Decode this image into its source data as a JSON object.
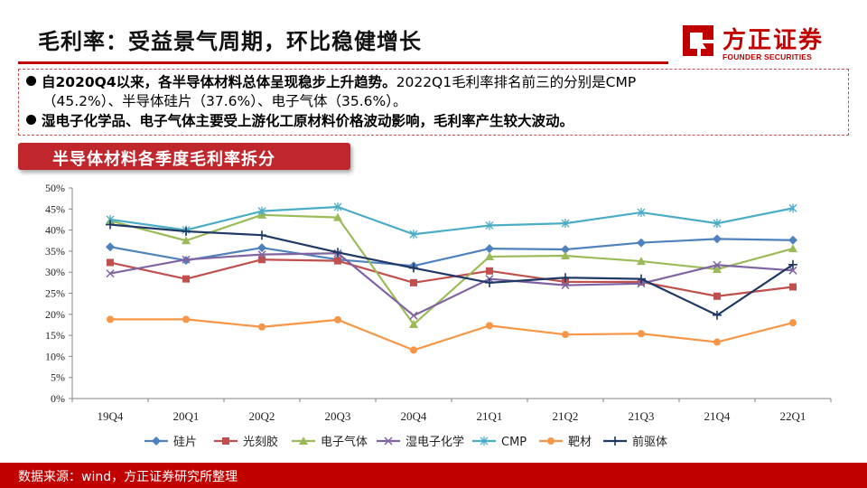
{
  "slide": {
    "title": "毛利率：受益景气周期，环比稳健增长"
  },
  "logo": {
    "name_cn": "方正证券",
    "name_en": "FOUNDER SECURITIES",
    "brand_color": "#c00000"
  },
  "summary": {
    "bullet1_bold": "自2020Q4以来，各半导体材料总体呈现稳步上升趋势。",
    "bullet1_rest": "2022Q1毛利率排名前三的分别是CMP",
    "bullet1_line2": "（45.2%）、半导体硅片（37.6%）、电子气体（35.6%）。",
    "bullet2": "湿电子化学品、电子气体主要受上游化工原材料价格波动影响，毛利率产生较大波动。"
  },
  "banner": {
    "label": "半导体材料各季度毛利率拆分"
  },
  "chart_data": {
    "type": "line",
    "title": "半导体材料各季度毛利率拆分",
    "categories": [
      "19Q4",
      "20Q1",
      "20Q2",
      "20Q3",
      "20Q4",
      "21Q1",
      "21Q2",
      "21Q3",
      "21Q4",
      "22Q1"
    ],
    "ylim": [
      0,
      50
    ],
    "y_ticks": [
      "0%",
      "5%",
      "10%",
      "15%",
      "20%",
      "25%",
      "30%",
      "35%",
      "40%",
      "45%",
      "50%"
    ],
    "y_unit": "%",
    "grid": false,
    "legend_position": "bottom",
    "series": [
      {
        "name": "硅片",
        "color": "#4f81bd",
        "marker": "diamond",
        "values": [
          36.0,
          32.8,
          35.8,
          33.0,
          31.5,
          35.6,
          35.4,
          37.0,
          37.9,
          37.6
        ]
      },
      {
        "name": "光刻胶",
        "color": "#c0504d",
        "marker": "square",
        "values": [
          32.3,
          28.4,
          33.0,
          32.7,
          27.5,
          30.3,
          27.7,
          27.7,
          24.3,
          26.5
        ]
      },
      {
        "name": "电子气体",
        "color": "#9bbb59",
        "marker": "triangle",
        "values": [
          42.2,
          37.5,
          43.6,
          43.0,
          17.6,
          33.7,
          33.9,
          32.6,
          30.7,
          35.6
        ]
      },
      {
        "name": "湿电子化学",
        "color": "#8064a2",
        "marker": "x",
        "values": [
          29.7,
          33.0,
          34.2,
          34.5,
          19.7,
          28.4,
          26.9,
          27.3,
          31.7,
          30.4
        ]
      },
      {
        "name": "CMP",
        "color": "#4bacc6",
        "marker": "star",
        "values": [
          42.5,
          40.0,
          44.5,
          45.5,
          39.0,
          41.1,
          41.6,
          44.2,
          41.6,
          45.2
        ]
      },
      {
        "name": "靶材",
        "color": "#f79646",
        "marker": "circle",
        "values": [
          18.8,
          18.8,
          17.0,
          18.7,
          11.5,
          17.3,
          15.2,
          15.4,
          13.4,
          18.0
        ]
      },
      {
        "name": "前驱体",
        "color": "#1f3864",
        "marker": "plus",
        "values": [
          41.3,
          39.7,
          38.8,
          34.7,
          31.0,
          27.5,
          28.7,
          28.4,
          19.8,
          31.8
        ]
      }
    ]
  },
  "footer": {
    "source": "数据来源：wind，方正证券研究所整理"
  }
}
